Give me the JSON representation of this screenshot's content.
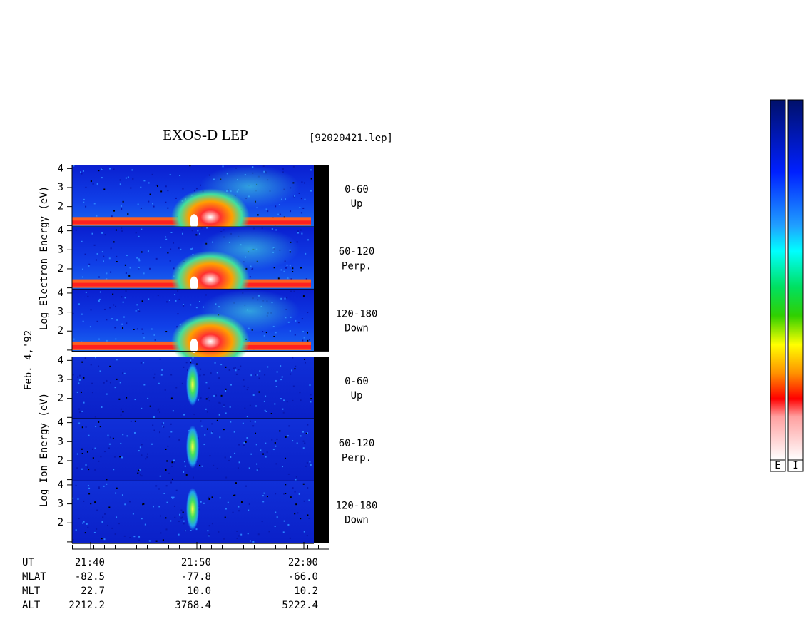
{
  "chart_data": {
    "type": "spectrogram",
    "title": "EXOS-D LEP",
    "file": "[92020421.lep]",
    "date_label": "Feb. 4,'92",
    "groups": [
      {
        "ylabel": "Log  Electron  Energy (eV)",
        "species": "electron",
        "panels": [
          {
            "range": "0-60",
            "direction": "Up"
          },
          {
            "range": "60-120",
            "direction": "Perp."
          },
          {
            "range": "120-180",
            "direction": "Down"
          }
        ]
      },
      {
        "ylabel": "Log  Ion  Energy (eV)",
        "species": "ion",
        "panels": [
          {
            "range": "0-60",
            "direction": "Up"
          },
          {
            "range": "60-120",
            "direction": "Perp."
          },
          {
            "range": "120-180",
            "direction": "Down"
          }
        ]
      }
    ],
    "ylim": [
      1,
      4.2
    ],
    "yticks": [
      2,
      3,
      4
    ],
    "x_rows": [
      {
        "name": "UT",
        "values": [
          "21:40",
          "21:50",
          "22:00"
        ]
      },
      {
        "name": "MLAT",
        "values": [
          "-82.5",
          "-77.8",
          "-66.0"
        ]
      },
      {
        "name": "MLT",
        "values": [
          "22.7",
          "10.0",
          "10.2"
        ]
      },
      {
        "name": "ALT",
        "values": [
          "2212.2",
          "3768.4",
          "5222.4"
        ]
      }
    ],
    "colorbars": [
      "E",
      "I"
    ]
  }
}
